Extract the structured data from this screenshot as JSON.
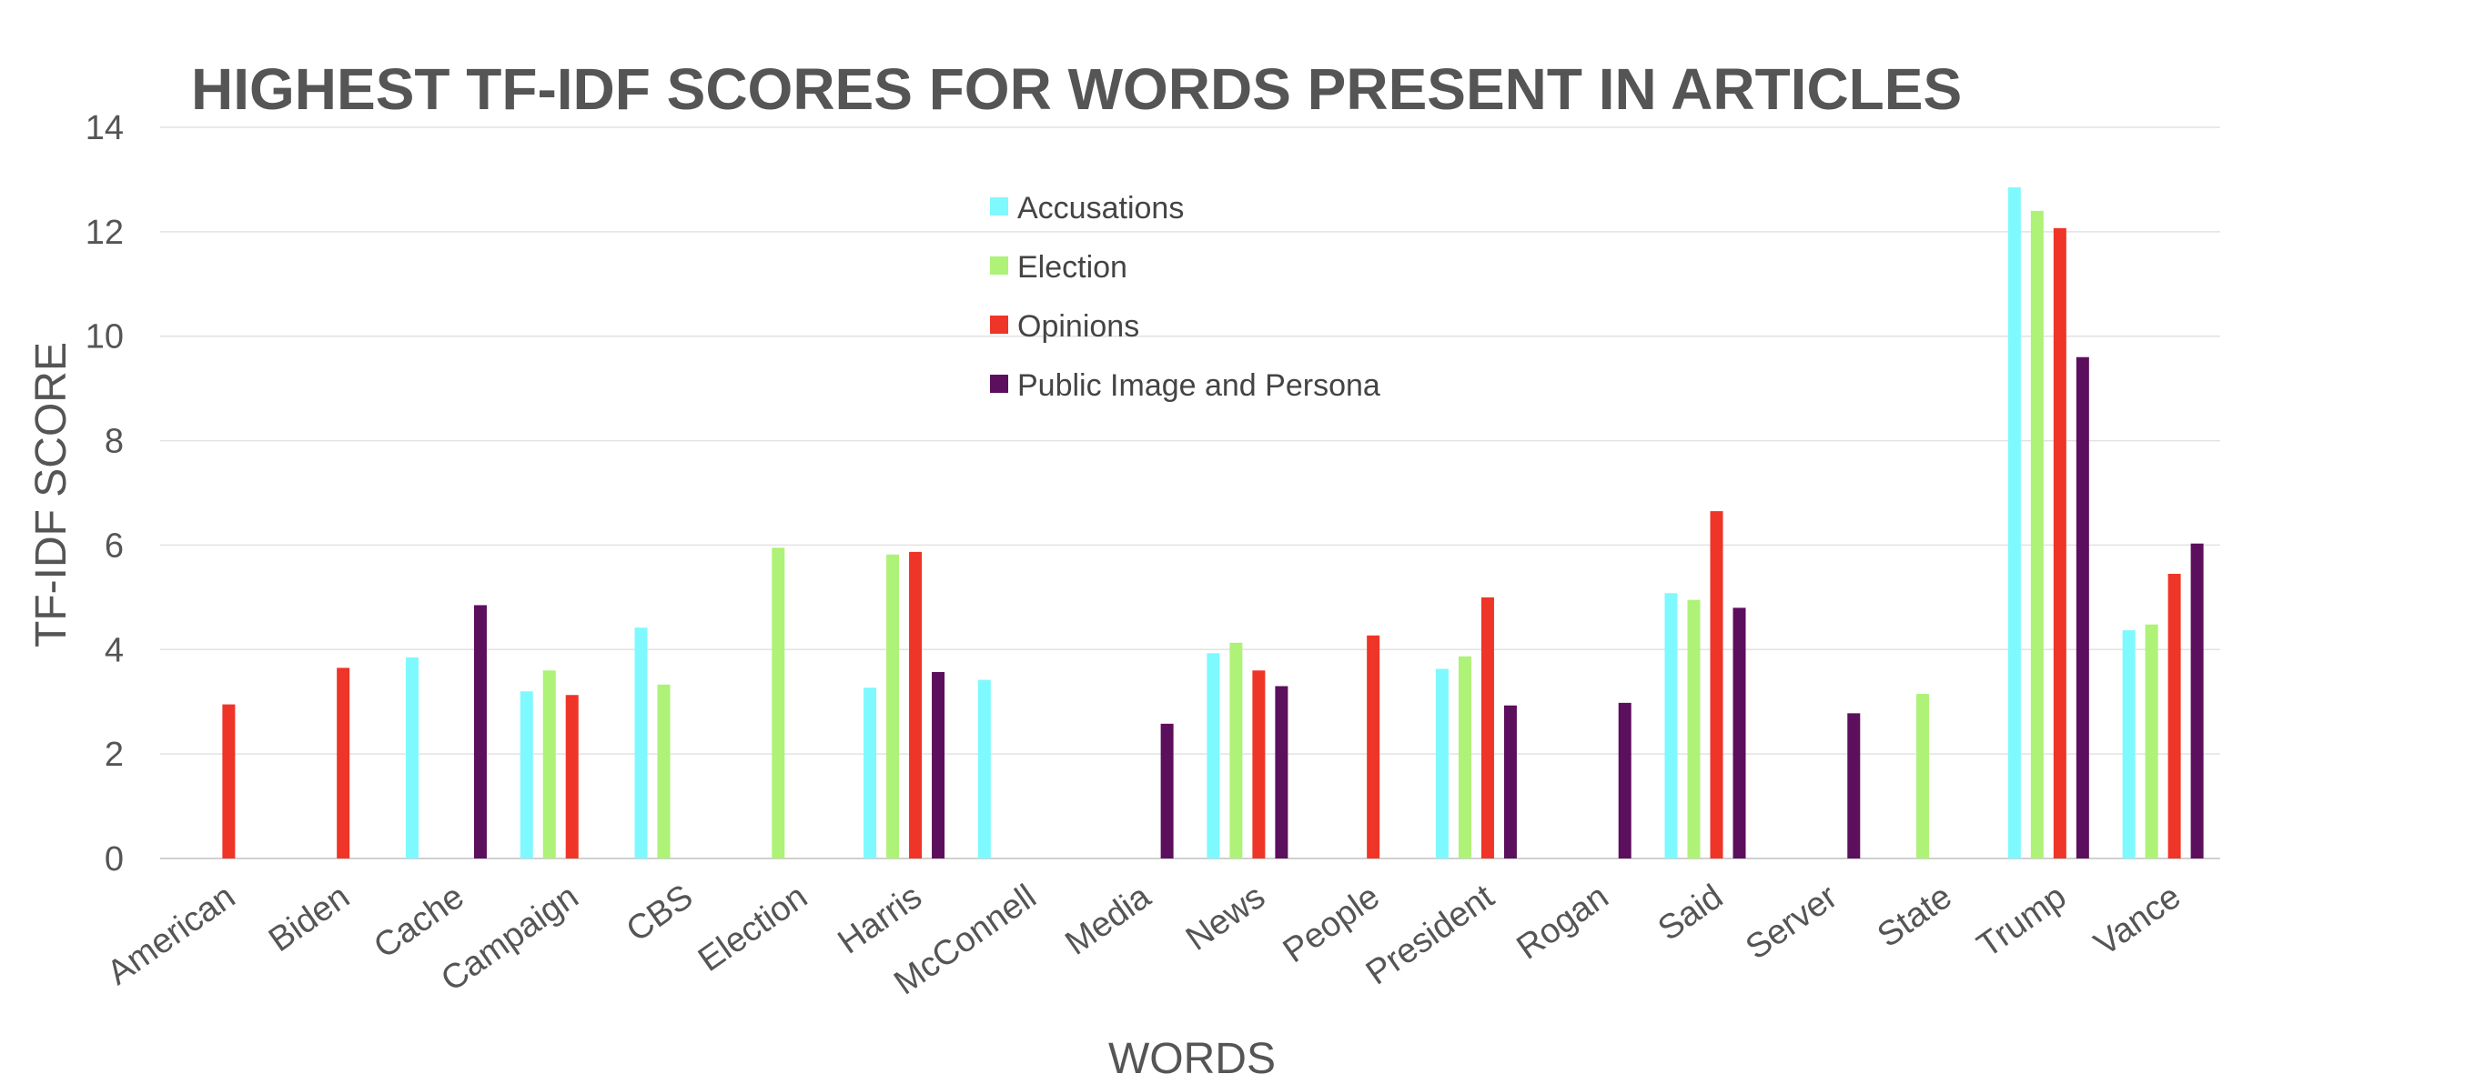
{
  "chart_data": {
    "type": "bar",
    "title": "HIGHEST TF-IDF SCORES FOR WORDS PRESENT IN ARTICLES",
    "xlabel": "WORDS",
    "ylabel": "TF-IDF SCORE",
    "ylim": [
      0,
      14
    ],
    "yticks": [
      0,
      2,
      4,
      6,
      8,
      10,
      12,
      14
    ],
    "grid": true,
    "legend_position": "top-center",
    "categories": [
      "American",
      "Biden",
      "Cache",
      "Campaign",
      "CBS",
      "Election",
      "Harris",
      "McConnell",
      "Media",
      "News",
      "People",
      "President",
      "Rogan",
      "Said",
      "Server",
      "State",
      "Trump",
      "Vance"
    ],
    "series": [
      {
        "name": "Accusations",
        "color": "#7ef9ff",
        "values": [
          null,
          null,
          3.85,
          3.2,
          4.42,
          null,
          3.27,
          3.42,
          null,
          3.93,
          null,
          3.63,
          null,
          5.08,
          null,
          null,
          12.85,
          4.37
        ]
      },
      {
        "name": "Election",
        "color": "#aef277",
        "values": [
          null,
          null,
          null,
          3.6,
          3.33,
          5.95,
          5.82,
          null,
          null,
          4.13,
          null,
          3.87,
          null,
          4.95,
          null,
          3.15,
          12.4,
          4.48
        ]
      },
      {
        "name": "Opinions",
        "color": "#ee3527",
        "values": [
          2.95,
          3.65,
          null,
          3.13,
          null,
          null,
          5.87,
          null,
          null,
          3.6,
          4.27,
          5.0,
          null,
          6.65,
          null,
          null,
          12.07,
          5.45
        ]
      },
      {
        "name": "Public Image and Persona",
        "color": "#5c0f5c",
        "values": [
          null,
          null,
          4.85,
          null,
          null,
          null,
          3.57,
          null,
          2.58,
          3.3,
          null,
          2.93,
          2.98,
          4.8,
          2.78,
          null,
          9.6,
          6.03
        ]
      }
    ]
  }
}
